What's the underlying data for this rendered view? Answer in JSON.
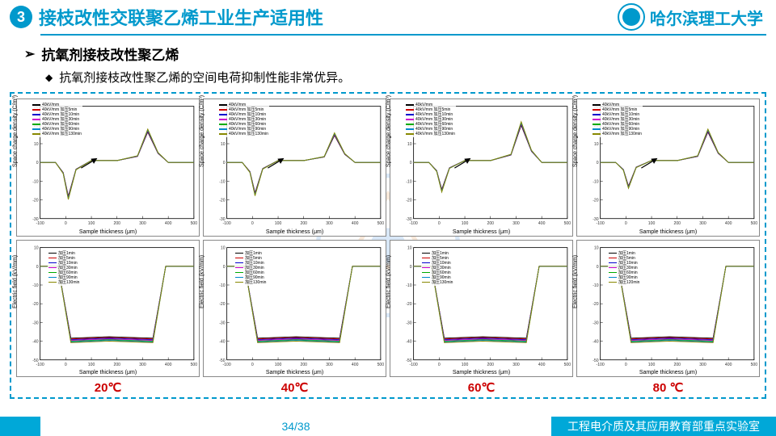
{
  "header": {
    "section_number": "3",
    "title": "接枝改性交联聚乙烯工业生产适用性",
    "university": "哈尔滨理工大学"
  },
  "subtitle": "抗氧剂接枝改性聚乙烯",
  "bullet": "抗氧剂接枝改性聚乙烯的空间电荷抑制性能非常优异。",
  "chart_common": {
    "xlabel": "Sample thickness (μm)",
    "xlim": [
      -100,
      500
    ],
    "xticks": [
      -100,
      0,
      100,
      200,
      300,
      400,
      500
    ],
    "top_row": {
      "ylabel": "Space charge density (C/m³)",
      "ylim": [
        -30,
        30
      ],
      "yticks": [
        -30,
        -20,
        -10,
        0,
        10,
        20,
        30
      ]
    },
    "bottom_row": {
      "ylabel": "Electric field (kV/mm)",
      "ylim": [
        -50,
        10
      ],
      "yticks": [
        -50,
        -40,
        -30,
        -20,
        -10,
        0,
        10
      ]
    },
    "legend_colors": [
      "#000000",
      "#cc0000",
      "#0000cc",
      "#cc00cc",
      "#00aa00",
      "#0088cc",
      "#888800",
      "#cc6600"
    ],
    "legend_top_labels": [
      "40kV/mm",
      "40kV/mm 加压5min",
      "40kV/mm 加压10min",
      "40kV/mm 加压30min",
      "40kV/mm 加压60min",
      "40kV/mm 加压90min",
      "40kV/mm 加压130min"
    ],
    "legend_bottom_labels": [
      "加压1min",
      "加压5min",
      "加压10min",
      "加压30min",
      "加压60min",
      "加压90min",
      "加压130min"
    ]
  },
  "columns": [
    {
      "temp": "20℃",
      "top_peak_neg": -20,
      "top_peak_pos": 18,
      "bot_plateau": -40,
      "legend_bottom_last": "加压130min"
    },
    {
      "temp": "40℃",
      "top_peak_neg": -18,
      "top_peak_pos": 16,
      "bot_plateau": -40,
      "legend_bottom_last": "加压130min"
    },
    {
      "temp": "60℃",
      "top_peak_neg": -16,
      "top_peak_pos": 22,
      "bot_plateau": -40,
      "legend_bottom_last": "加压130min"
    },
    {
      "temp": "80 ℃",
      "top_peak_neg": -14,
      "top_peak_pos": 18,
      "bot_plateau": -40,
      "legend_bottom_last": "加压120min"
    }
  ],
  "footer": {
    "page": "34/38",
    "lab": "工程电介质及其应用教育部重点实验室"
  }
}
